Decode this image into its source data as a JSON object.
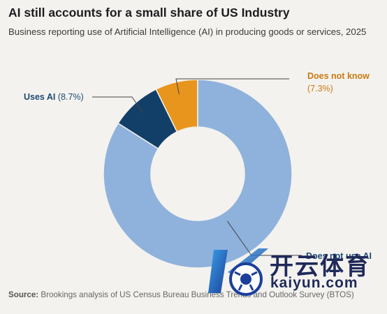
{
  "header": {
    "title": "AI still accounts for a small share of US Industry",
    "subtitle": "Business reporting use of Artificial Intelligence (AI) in producing goods or services, 2025"
  },
  "chart_data": {
    "type": "pie",
    "donut": true,
    "title": "AI still accounts for a small share of US Industry",
    "subtitle": "Business reporting use of Artificial Intelligence (AI) in producing goods or services, 2025",
    "slices": [
      {
        "label": "Does not know",
        "value": 7.3,
        "display": "(7.3%)",
        "color": "#e8951e",
        "label_color": "#c97a12"
      },
      {
        "label": "Uses AI",
        "value": 8.7,
        "display": "(8.7%)",
        "color": "#123f68",
        "label_color": "#1d4a72"
      },
      {
        "label": "Does not use AI",
        "value": 84.0,
        "display": "",
        "color": "#8fb2dc",
        "label_color": "#1d4a72"
      }
    ],
    "legend": "none (labels with leader lines)"
  },
  "source": {
    "label": "Source:",
    "text": "Brookings analysis of US Census Bureau Business Trends and Outlook Survey (BTOS)"
  },
  "watermark": {
    "name": "开云体育",
    "domain": "kaiyun.com"
  }
}
